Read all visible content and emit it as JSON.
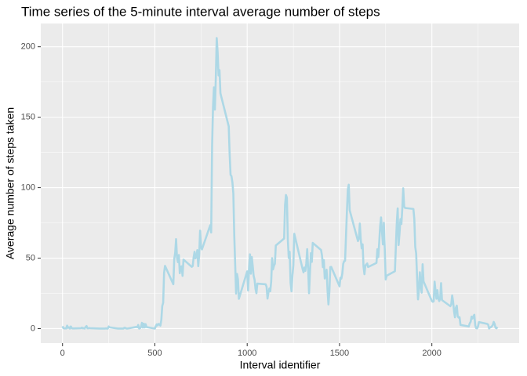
{
  "chart_data": {
    "type": "line",
    "title": "Time series of the 5-minute interval average number of steps",
    "x_label": "Interval identifier",
    "y_label": "Average number of steps taken",
    "x": [
      0,
      5,
      10,
      15,
      20,
      25,
      30,
      35,
      40,
      45,
      50,
      55,
      100,
      105,
      110,
      115,
      120,
      125,
      130,
      135,
      140,
      145,
      150,
      200,
      230,
      235,
      240,
      245,
      250,
      255,
      300,
      330,
      335,
      340,
      345,
      350,
      400,
      405,
      410,
      415,
      420,
      425,
      430,
      435,
      440,
      445,
      450,
      455,
      500,
      505,
      510,
      515,
      520,
      525,
      530,
      535,
      540,
      545,
      550,
      555,
      600,
      605,
      610,
      615,
      620,
      625,
      630,
      635,
      640,
      645,
      650,
      655,
      700,
      705,
      710,
      715,
      720,
      725,
      730,
      735,
      740,
      745,
      750,
      755,
      800,
      805,
      810,
      815,
      820,
      825,
      830,
      835,
      840,
      845,
      850,
      855,
      900,
      905,
      910,
      915,
      920,
      925,
      930,
      935,
      940,
      945,
      950,
      955,
      1000,
      1005,
      1010,
      1015,
      1020,
      1025,
      1030,
      1035,
      1040,
      1045,
      1050,
      1055,
      1100,
      1105,
      1110,
      1115,
      1120,
      1125,
      1130,
      1135,
      1140,
      1145,
      1150,
      1155,
      1200,
      1205,
      1210,
      1215,
      1220,
      1225,
      1230,
      1235,
      1240,
      1245,
      1250,
      1255,
      1300,
      1305,
      1310,
      1315,
      1320,
      1325,
      1330,
      1335,
      1340,
      1345,
      1350,
      1355,
      1400,
      1405,
      1410,
      1415,
      1420,
      1425,
      1430,
      1435,
      1440,
      1445,
      1450,
      1455,
      1500,
      1505,
      1510,
      1515,
      1520,
      1525,
      1530,
      1535,
      1540,
      1545,
      1550,
      1555,
      1600,
      1605,
      1610,
      1615,
      1620,
      1625,
      1630,
      1635,
      1640,
      1645,
      1650,
      1655,
      1700,
      1705,
      1710,
      1715,
      1720,
      1725,
      1730,
      1735,
      1740,
      1745,
      1750,
      1755,
      1800,
      1805,
      1810,
      1815,
      1820,
      1825,
      1830,
      1835,
      1840,
      1845,
      1850,
      1855,
      1900,
      1905,
      1910,
      1915,
      1920,
      1925,
      1930,
      1935,
      1940,
      1945,
      1950,
      1955,
      2000,
      2005,
      2010,
      2015,
      2020,
      2025,
      2030,
      2035,
      2040,
      2045,
      2050,
      2055,
      2100,
      2105,
      2110,
      2115,
      2120,
      2125,
      2130,
      2135,
      2140,
      2145,
      2150,
      2155,
      2200,
      2205,
      2210,
      2215,
      2220,
      2225,
      2230,
      2235,
      2240,
      2245,
      2250,
      2255,
      2300,
      2305,
      2310,
      2315,
      2320,
      2325,
      2330,
      2335,
      2340,
      2345,
      2350,
      2355
    ],
    "values": [
      1.7,
      0.3,
      0.1,
      0.2,
      0.1,
      2.1,
      0.5,
      0.9,
      0,
      1.5,
      0.3,
      0.1,
      0.3,
      0.7,
      0.2,
      0.3,
      0,
      1.1,
      1.8,
      0.2,
      0.2,
      0.4,
      0.3,
      0,
      0,
      0.2,
      0,
      0,
      1.5,
      0.9,
      0,
      0,
      0.6,
      0.5,
      0.1,
      0,
      1.2,
      0.9,
      2.6,
      0,
      0.3,
      1.1,
      4.1,
      0.7,
      3.5,
      0.8,
      3.1,
      1.1,
      0,
      1.6,
      3,
      2.2,
      3.3,
      3,
      2.1,
      6.1,
      16,
      18.3,
      39.5,
      44.5,
      31.5,
      49.3,
      53.8,
      63.5,
      50,
      47.1,
      52.2,
      39.3,
      44,
      44.2,
      37.4,
      49,
      43.8,
      44.4,
      50.5,
      54.5,
      49.9,
      50.9,
      55.7,
      44.3,
      52.3,
      69.5,
      57.8,
      56.2,
      73.4,
      68.2,
      129.4,
      157.5,
      171.2,
      155.4,
      177.3,
      206.2,
      195.9,
      179.6,
      183.4,
      167,
      143.5,
      124,
      109.1,
      108.1,
      103.7,
      95.9,
      66.2,
      45.2,
      24.8,
      38.8,
      35,
      21.1,
      40.6,
      27,
      42.4,
      52.7,
      38.9,
      50.8,
      44.3,
      37.4,
      34.7,
      28.3,
      25.1,
      31.9,
      31.4,
      29.7,
      21.3,
      25.5,
      28.4,
      26.5,
      33.4,
      50,
      42,
      44.6,
      46,
      59,
      63.9,
      87.7,
      94.8,
      92.8,
      63.4,
      50.2,
      54.5,
      32.4,
      26.5,
      37.7,
      45.1,
      67.3,
      42.3,
      39.9,
      43.3,
      41,
      46.2,
      56.4,
      42.8,
      25.1,
      40,
      53.5,
      47.3,
      60.8,
      55.8,
      52,
      43.6,
      48.7,
      35.5,
      37.5,
      41.8,
      27.5,
      17.1,
      26.1,
      43.6,
      43.8,
      30,
      36.1,
      35.5,
      38.9,
      46,
      47.8,
      48.1,
      65.3,
      82.9,
      98.7,
      102.1,
      84,
      62.1,
      64.1,
      74.5,
      63.2,
      56.9,
      59.8,
      43.9,
      38.6,
      44.7,
      45.5,
      46.2,
      43.7,
      46.6,
      56.3,
      50.7,
      61.2,
      72.7,
      78.9,
      68.9,
      59.7,
      75.1,
      56.5,
      34.8,
      37.5,
      40.7,
      58,
      74.7,
      85.3,
      59.3,
      67.8,
      77.7,
      74.2,
      85.3,
      99.5,
      86.6,
      85.6,
      84.9,
      77.8,
      58,
      53.4,
      36.3,
      20.7,
      27.4,
      40,
      30.2,
      25.5,
      45.7,
      33.5,
      19.6,
      19,
      19.3,
      33.3,
      26.8,
      21.2,
      27.3,
      21.3,
      19.5,
      21.3,
      32.3,
      20.2,
      15.9,
      17.2,
      23.5,
      19.2,
      12.5,
      8,
      14.7,
      16.3,
      8.7,
      7.8,
      8.1,
      2.6,
      1.5,
      3.7,
      4.8,
      8.5,
      7.1,
      8.7,
      9.8,
      2.2,
      0.3,
      0.1,
      1.6,
      4.6,
      3.3,
      2.8,
      0,
      0.8,
      1,
      1.6,
      2.6,
      4.7,
      3.3,
      0.6,
      0.2,
      1.1
    ],
    "color": "#add8e6",
    "xlim": [
      -117.75,
      2472.75
    ],
    "xticks": [
      0,
      500,
      1000,
      1500,
      2000
    ],
    "ylim": [
      -10.3,
      216.5
    ],
    "yticks": [
      0,
      50,
      100,
      150,
      200
    ],
    "grid": true
  }
}
